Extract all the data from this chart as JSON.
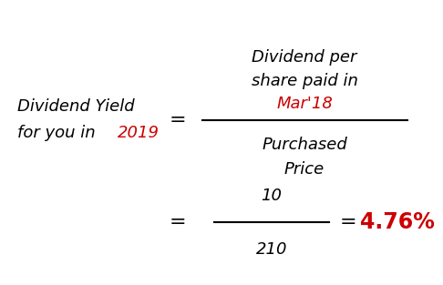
{
  "bg_color": "#ffffff",
  "black_color": "#000000",
  "red_color": "#cc0000",
  "left_label_line1": "Dividend Yield",
  "left_label_line2": "for you in ",
  "left_label_year": "2019",
  "equals_sign1": "=",
  "numerator_line1": "Dividend per",
  "numerator_line2": "share paid in",
  "numerator_highlight": "Mar'18",
  "denominator_line1": "Purchased",
  "denominator_line2": "Price",
  "equals2": "=",
  "num_value": "10",
  "den_value": "210",
  "equals3": "=",
  "result": "4.76%",
  "font_size_main": 13,
  "font_size_equals": 14,
  "font_size_result": 15,
  "font_size_numbers": 13
}
